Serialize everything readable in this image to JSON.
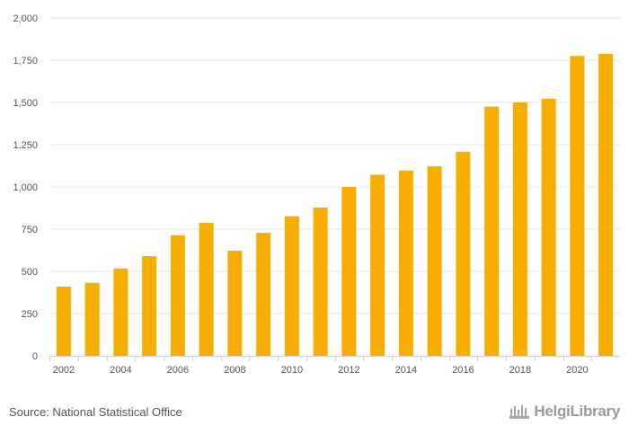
{
  "chart_data": {
    "type": "bar",
    "categories": [
      "2002",
      "2003",
      "2004",
      "2005",
      "2006",
      "2007",
      "2008",
      "2009",
      "2010",
      "2011",
      "2012",
      "2013",
      "2014",
      "2015",
      "2016",
      "2017",
      "2018",
      "2019",
      "2020",
      "2021"
    ],
    "values": [
      410,
      432,
      517,
      590,
      714,
      787,
      622,
      728,
      826,
      878,
      1000,
      1072,
      1097,
      1122,
      1208,
      1475,
      1500,
      1522,
      1775,
      1788
    ],
    "x_tick_labels": [
      "2002",
      "2004",
      "2006",
      "2008",
      "2010",
      "2012",
      "2014",
      "2016",
      "2018",
      "2020"
    ],
    "y_tick_labels": [
      "0",
      "250",
      "500",
      "750",
      "1,000",
      "1,250",
      "1,500",
      "1,750",
      "2,000"
    ],
    "y_ticks": [
      0,
      250,
      500,
      750,
      1000,
      1250,
      1500,
      1750,
      2000
    ],
    "ylim": [
      0,
      2000
    ],
    "title": "",
    "xlabel": "",
    "ylabel": "",
    "grid": true,
    "bar_color": "#f7ae00",
    "grid_color": "#e6e6e6"
  },
  "footer": {
    "source": "Source: National Statistical Office",
    "logo_text": "HelgiLibrary",
    "logo_icon": "library-icon"
  }
}
